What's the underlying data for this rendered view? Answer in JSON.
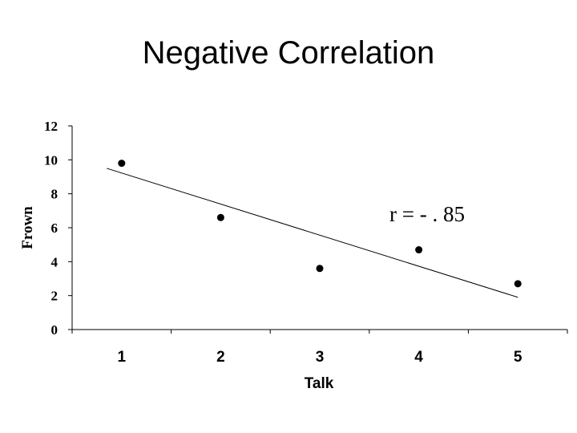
{
  "chart_data": {
    "type": "scatter",
    "title": "Negative Correlation",
    "xlabel": "Talk",
    "ylabel": "Frown",
    "categories": [
      "1",
      "2",
      "3",
      "4",
      "5"
    ],
    "x": [
      1,
      2,
      3,
      4,
      5
    ],
    "y": [
      9.8,
      6.6,
      3.6,
      4.7,
      2.7
    ],
    "ylim": [
      0,
      12
    ],
    "yticks": [
      "0",
      "2",
      "4",
      "6",
      "8",
      "10",
      "12"
    ],
    "trendline": {
      "x": [
        0.85,
        5
      ],
      "y": [
        9.5,
        1.9
      ]
    },
    "annotation": "r = - . 85",
    "grid": false,
    "legend": "none",
    "colors": {
      "marker": "#000000",
      "line": "#000000",
      "axis": "#000000"
    }
  }
}
